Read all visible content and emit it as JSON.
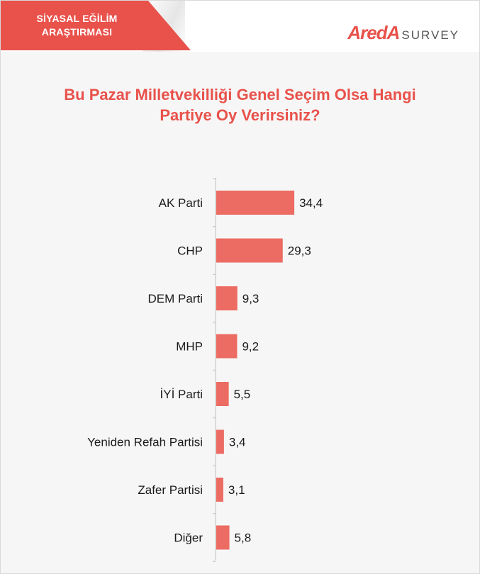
{
  "header": {
    "banner_line1": "SİYASAL EĞİLİM",
    "banner_line2": "ARAŞTIRMASI",
    "brand_mark": "AredA",
    "brand_word": "SURVEY"
  },
  "colors": {
    "accent": "#e8524b",
    "bar": "#ec6b62"
  },
  "chart_data": {
    "type": "bar",
    "orientation": "horizontal",
    "title_line1": "Bu Pazar Milletvekilliği Genel Seçim Olsa Hangi",
    "title_line2": "Partiye Oy Verirsiniz?",
    "categories": [
      "AK Parti",
      "CHP",
      "DEM Parti",
      "MHP",
      "İYİ Parti",
      "Yeniden Refah Partisi",
      "Zafer Partisi",
      "Diğer"
    ],
    "values": [
      34.4,
      29.3,
      9.3,
      9.2,
      5.5,
      3.4,
      3.1,
      5.8
    ],
    "value_labels": [
      "34,4",
      "29,3",
      "9,3",
      "9,2",
      "5,5",
      "3,4",
      "3,1",
      "5,8"
    ],
    "xlim": [
      0,
      40
    ],
    "grid": false,
    "legend": "none"
  }
}
